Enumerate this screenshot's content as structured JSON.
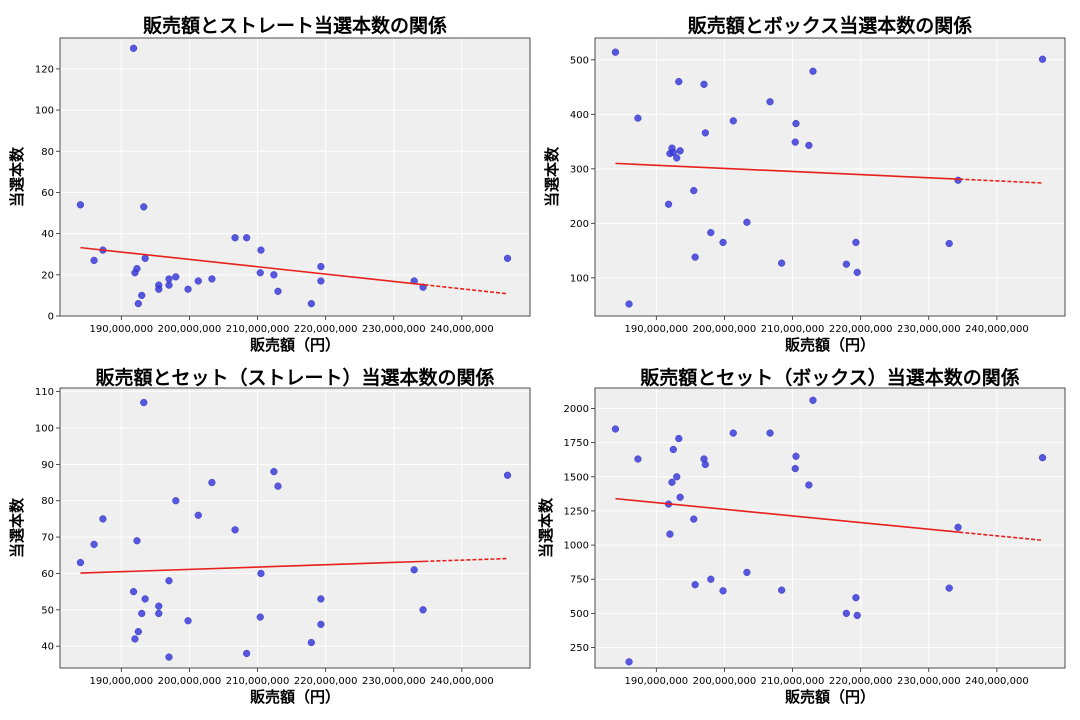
{
  "figure": {
    "background": "#ffffff",
    "plot_bg": "#efefef",
    "grid_color": "#ffffff",
    "point_color": "#3b3bdc",
    "line_color": "#e8201c"
  },
  "chart_data": [
    {
      "type": "scatter",
      "title": "販売額とストレート当選本数の関係",
      "xlabel": "販売額（円）",
      "ylabel": "当選本数",
      "xlim": [
        181000000,
        250000000
      ],
      "ylim": [
        0,
        135
      ],
      "xticks": [
        190000000,
        200000000,
        210000000,
        220000000,
        230000000,
        240000000
      ],
      "xtick_labels": [
        "190,000,000",
        "200,000,000",
        "210,000,000",
        "220,000,000",
        "230,000,000",
        "240,000,000"
      ],
      "yticks": [
        0,
        20,
        40,
        60,
        80,
        100,
        120
      ],
      "ytick_labels": [
        "0",
        "20",
        "40",
        "60",
        "80",
        "100",
        "120"
      ],
      "grid": true,
      "points": [
        [
          184000000,
          54
        ],
        [
          186000000,
          27
        ],
        [
          187300000,
          32
        ],
        [
          191800000,
          130
        ],
        [
          192000000,
          21
        ],
        [
          192300000,
          23
        ],
        [
          192500000,
          6
        ],
        [
          193000000,
          10
        ],
        [
          193300000,
          53
        ],
        [
          193500000,
          28
        ],
        [
          195500000,
          15
        ],
        [
          195500000,
          13
        ],
        [
          197000000,
          15
        ],
        [
          197000000,
          18
        ],
        [
          198000000,
          19
        ],
        [
          199800000,
          13
        ],
        [
          201300000,
          17
        ],
        [
          203300000,
          18
        ],
        [
          206700000,
          38
        ],
        [
          208400000,
          38
        ],
        [
          210400000,
          21
        ],
        [
          210500000,
          32
        ],
        [
          212400000,
          20
        ],
        [
          213000000,
          12
        ],
        [
          217900000,
          6
        ],
        [
          219300000,
          24
        ],
        [
          219300000,
          17
        ],
        [
          233000000,
          17
        ],
        [
          234300000,
          14
        ],
        [
          246700000,
          28
        ]
      ],
      "trend": {
        "x": [
          184000000,
          246700000
        ],
        "y": [
          33.2,
          10.8
        ],
        "solid_until": 234500000
      }
    },
    {
      "type": "scatter",
      "title": "販売額とボックス当選本数の関係",
      "xlabel": "販売額（円）",
      "ylabel": "当選本数",
      "xlim": [
        181000000,
        250000000
      ],
      "ylim": [
        30,
        540
      ],
      "xticks": [
        190000000,
        200000000,
        210000000,
        220000000,
        230000000,
        240000000
      ],
      "xtick_labels": [
        "190,000,000",
        "200,000,000",
        "210,000,000",
        "220,000,000",
        "230,000,000",
        "240,000,000"
      ],
      "yticks": [
        100,
        200,
        300,
        400,
        500
      ],
      "ytick_labels": [
        "100",
        "200",
        "300",
        "400",
        "500"
      ],
      "grid": true,
      "points": [
        [
          184000000,
          514
        ],
        [
          186000000,
          52
        ],
        [
          187300000,
          393
        ],
        [
          191800000,
          235
        ],
        [
          192000000,
          328
        ],
        [
          192300000,
          338
        ],
        [
          192500000,
          330
        ],
        [
          193000000,
          320
        ],
        [
          193300000,
          460
        ],
        [
          193500000,
          333
        ],
        [
          195500000,
          260
        ],
        [
          195700000,
          138
        ],
        [
          197000000,
          455
        ],
        [
          197200000,
          366
        ],
        [
          198000000,
          183
        ],
        [
          199800000,
          165
        ],
        [
          201300000,
          388
        ],
        [
          203300000,
          202
        ],
        [
          206700000,
          423
        ],
        [
          208400000,
          127
        ],
        [
          210400000,
          349
        ],
        [
          210500000,
          383
        ],
        [
          212400000,
          343
        ],
        [
          213000000,
          479
        ],
        [
          217900000,
          125
        ],
        [
          219300000,
          165
        ],
        [
          219500000,
          110
        ],
        [
          233000000,
          163
        ],
        [
          234300000,
          279
        ],
        [
          246700000,
          501
        ]
      ],
      "trend": {
        "x": [
          184000000,
          246700000
        ],
        "y": [
          310,
          274
        ],
        "solid_until": 234500000
      }
    },
    {
      "type": "scatter",
      "title": "販売額とセット（ストレート）当選本数の関係",
      "xlabel": "販売額（円）",
      "ylabel": "当選本数",
      "xlim": [
        181000000,
        250000000
      ],
      "ylim": [
        34,
        111
      ],
      "xticks": [
        190000000,
        200000000,
        210000000,
        220000000,
        230000000,
        240000000
      ],
      "xtick_labels": [
        "190,000,000",
        "200,000,000",
        "210,000,000",
        "220,000,000",
        "230,000,000",
        "240,000,000"
      ],
      "yticks": [
        40,
        50,
        60,
        70,
        80,
        90,
        100,
        110
      ],
      "ytick_labels": [
        "40",
        "50",
        "60",
        "70",
        "80",
        "90",
        "100",
        "110"
      ],
      "grid": true,
      "points": [
        [
          184000000,
          63
        ],
        [
          186000000,
          68
        ],
        [
          187300000,
          75
        ],
        [
          191800000,
          55
        ],
        [
          192000000,
          42
        ],
        [
          192300000,
          69
        ],
        [
          192500000,
          44
        ],
        [
          193000000,
          49
        ],
        [
          193300000,
          107
        ],
        [
          193500000,
          53
        ],
        [
          195500000,
          51
        ],
        [
          195500000,
          49
        ],
        [
          197000000,
          58
        ],
        [
          197000000,
          37
        ],
        [
          198000000,
          80
        ],
        [
          199800000,
          47
        ],
        [
          201300000,
          76
        ],
        [
          203300000,
          85
        ],
        [
          206700000,
          72
        ],
        [
          208400000,
          38
        ],
        [
          210400000,
          48
        ],
        [
          210500000,
          60
        ],
        [
          212400000,
          88
        ],
        [
          213000000,
          84
        ],
        [
          217900000,
          41
        ],
        [
          219300000,
          53
        ],
        [
          219300000,
          46
        ],
        [
          233000000,
          61
        ],
        [
          234300000,
          50
        ],
        [
          246700000,
          87
        ]
      ],
      "trend": {
        "x": [
          184000000,
          246700000
        ],
        "y": [
          60.1,
          64.1
        ],
        "solid_until": 234500000
      }
    },
    {
      "type": "scatter",
      "title": "販売額とセット（ボックス）当選本数の関係",
      "xlabel": "販売額（円）",
      "ylabel": "当選本数",
      "xlim": [
        181000000,
        250000000
      ],
      "ylim": [
        100,
        2150
      ],
      "xticks": [
        190000000,
        200000000,
        210000000,
        220000000,
        230000000,
        240000000
      ],
      "xtick_labels": [
        "190,000,000",
        "200,000,000",
        "210,000,000",
        "220,000,000",
        "230,000,000",
        "240,000,000"
      ],
      "yticks": [
        250,
        500,
        750,
        1000,
        1250,
        1500,
        1750,
        2000
      ],
      "ytick_labels": [
        "250",
        "500",
        "750",
        "1000",
        "1250",
        "1500",
        "1750",
        "2000"
      ],
      "grid": true,
      "points": [
        [
          184000000,
          1850
        ],
        [
          186000000,
          145
        ],
        [
          187300000,
          1630
        ],
        [
          191800000,
          1300
        ],
        [
          192000000,
          1080
        ],
        [
          192300000,
          1460
        ],
        [
          192500000,
          1700
        ],
        [
          193000000,
          1500
        ],
        [
          193300000,
          1780
        ],
        [
          193500000,
          1350
        ],
        [
          195500000,
          1190
        ],
        [
          195700000,
          710
        ],
        [
          197000000,
          1630
        ],
        [
          197200000,
          1590
        ],
        [
          198000000,
          750
        ],
        [
          199800000,
          665
        ],
        [
          201300000,
          1820
        ],
        [
          203300000,
          800
        ],
        [
          206700000,
          1820
        ],
        [
          208400000,
          670
        ],
        [
          210400000,
          1560
        ],
        [
          210500000,
          1650
        ],
        [
          212400000,
          1440
        ],
        [
          213000000,
          2060
        ],
        [
          217900000,
          500
        ],
        [
          219300000,
          615
        ],
        [
          219500000,
          485
        ],
        [
          233000000,
          685
        ],
        [
          234300000,
          1130
        ],
        [
          246700000,
          1640
        ]
      ],
      "trend": {
        "x": [
          184000000,
          246700000
        ],
        "y": [
          1340,
          1035
        ],
        "solid_until": 234500000
      }
    }
  ]
}
